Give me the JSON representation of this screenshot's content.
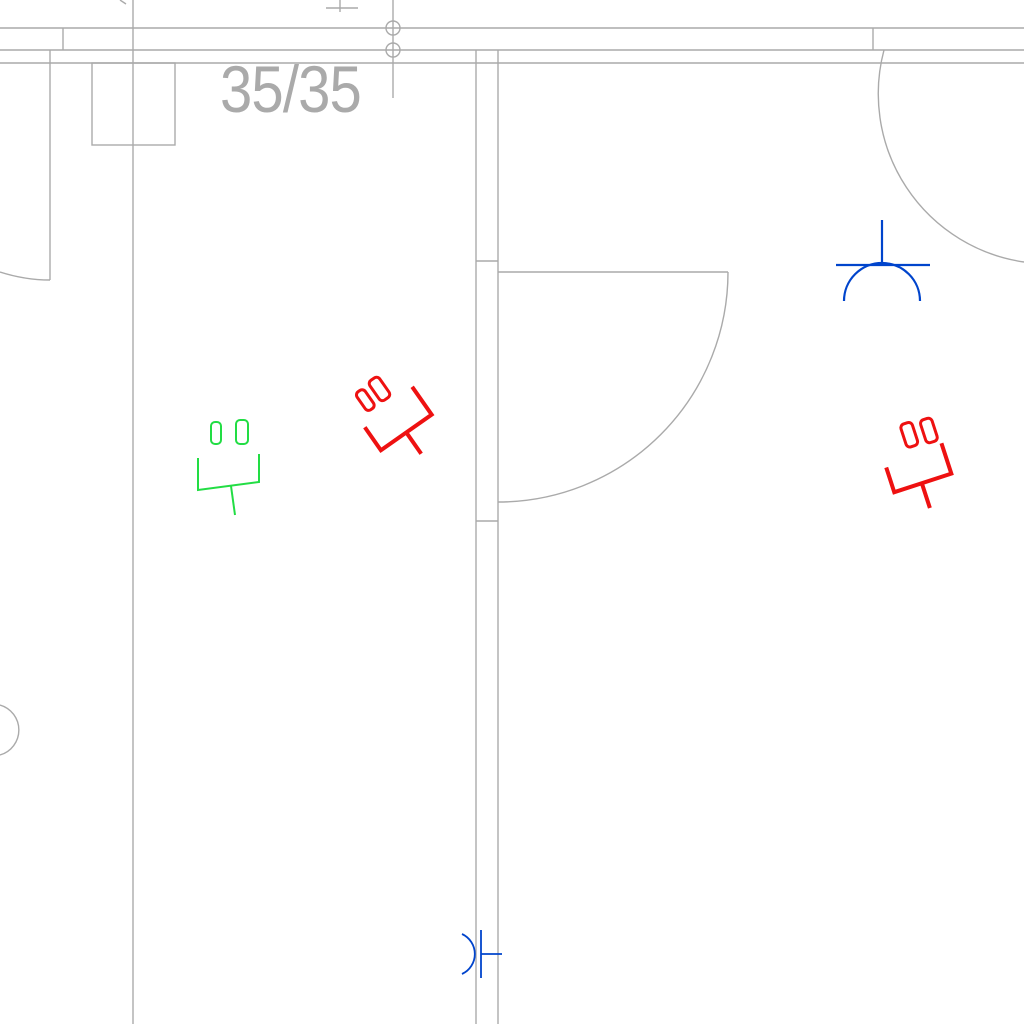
{
  "plan": {
    "dimension_label": "35/35"
  },
  "colors": {
    "wall": "#aaaaaa",
    "socket_existing": "#22dd44",
    "socket_new": "#ee1111",
    "phone_outlet": "#0044cc"
  },
  "symbols": [
    {
      "name": "wall-socket-green-icon",
      "kind": "double-socket",
      "color": "socket_existing"
    },
    {
      "name": "wall-socket-red-icon-1",
      "kind": "double-socket",
      "color": "socket_new"
    },
    {
      "name": "wall-socket-red-icon-2",
      "kind": "double-socket",
      "color": "socket_new"
    },
    {
      "name": "phone-outlet-icon-1",
      "kind": "telecom-outlet",
      "color": "phone_outlet"
    },
    {
      "name": "phone-outlet-icon-2",
      "kind": "telecom-outlet",
      "color": "phone_outlet"
    }
  ]
}
